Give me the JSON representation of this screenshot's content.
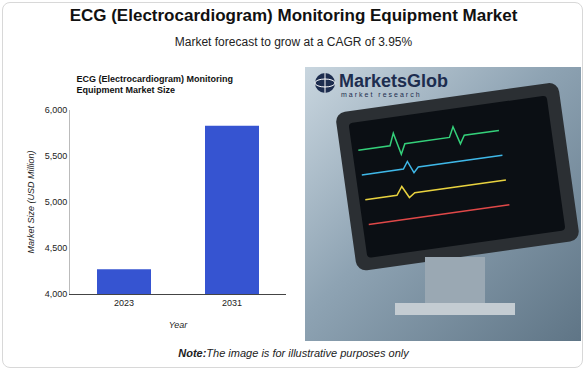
{
  "header": {
    "title": "ECG (Electrocardiogram) Monitoring Equipment Market",
    "subtitle": "Market forecast to grow at a CAGR of 3.95%"
  },
  "chart_data": {
    "type": "bar",
    "title": "ECG (Electrocardiogram) Monitoring Equipment Market Size",
    "x_label": "Year",
    "y_label": "Market Size (USD Million)",
    "categories": [
      "2023",
      "2031"
    ],
    "values": [
      4270,
      5830
    ],
    "color": "#3654d1",
    "ylim": [
      4000,
      6000
    ],
    "yticks": [
      {
        "value": 4000,
        "label": "4,000"
      },
      {
        "value": 4500,
        "label": "4,500"
      },
      {
        "value": 5000,
        "label": "5,000"
      },
      {
        "value": 5500,
        "label": "5,500"
      },
      {
        "value": 6000,
        "label": "6,000"
      }
    ],
    "grid": false
  },
  "logo": {
    "name": "MarketsGlob",
    "tagline": "market research"
  },
  "footer": {
    "label": "Note:",
    "text": "The image is for illustrative purposes only"
  }
}
